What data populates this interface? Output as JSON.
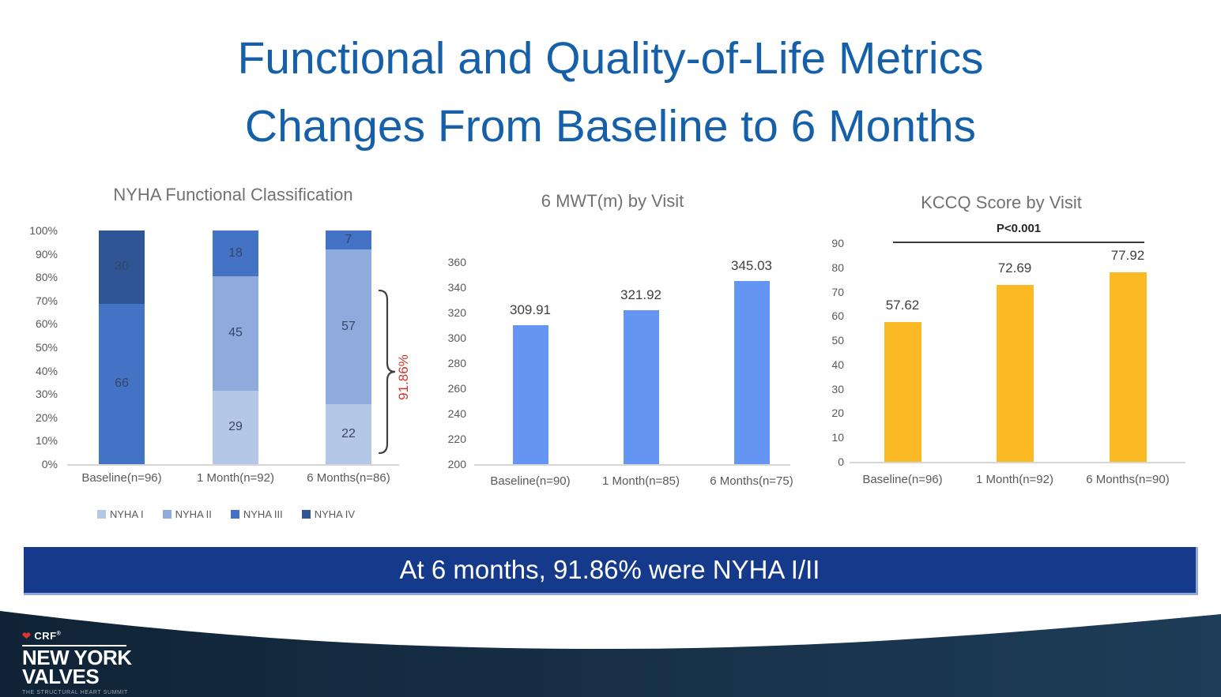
{
  "slide_title": {
    "line1": "Functional and Quality-of-Life Metrics",
    "line2": "Changes From Baseline to 6 Months"
  },
  "colors": {
    "title_blue": "#1660A9",
    "banner_bg": "#153A8C",
    "footer_navy": "#13293F",
    "annotation_red": "#D0342C",
    "mwt_bar_blue": "#6495F2",
    "kccq_bar_amber": "#FBBA24"
  },
  "chart_data": [
    {
      "id": "nyha",
      "type": "bar",
      "subtype": "stacked-100-percent",
      "title": "NYHA Functional Classification",
      "categories": [
        "Baseline(n=96)",
        "1 Month(n=92)",
        "6 Months(n=86)"
      ],
      "series": [
        {
          "name": "NYHA I",
          "color": "#B4C7E7",
          "values": [
            0,
            29,
            22
          ]
        },
        {
          "name": "NYHA II",
          "color": "#8FAADC",
          "values": [
            0,
            45,
            57
          ]
        },
        {
          "name": "NYHA III",
          "color": "#4472C4",
          "values": [
            66,
            18,
            7
          ]
        },
        {
          "name": "NYHA IV",
          "color": "#2F5597",
          "values": [
            30,
            0,
            0
          ]
        }
      ],
      "y_ticks": [
        "100%",
        "90%",
        "80%",
        "70%",
        "60%",
        "50%",
        "40%",
        "30%",
        "20%",
        "10%",
        "0%"
      ],
      "legend": [
        "NYHA I",
        "NYHA II",
        "NYHA III",
        "NYHA IV"
      ],
      "legend_position": "bottom",
      "annotation": {
        "text": "91.86%",
        "color": "#D0342C"
      }
    },
    {
      "id": "mwt",
      "type": "bar",
      "title": "6 MWT(m) by Visit",
      "categories": [
        "Baseline(n=90)",
        "1 Month(n=85)",
        "6 Months(n=75)"
      ],
      "values": [
        309.91,
        321.92,
        345.03
      ],
      "data_labels": [
        "309.91",
        "321.92",
        "345.03"
      ],
      "ylim": [
        200,
        360
      ],
      "y_ticks": [
        "360",
        "340",
        "320",
        "300",
        "280",
        "260",
        "240",
        "220",
        "200"
      ],
      "bar_color": "#6495F2",
      "grid": false
    },
    {
      "id": "kccq",
      "type": "bar",
      "title": "KCCQ Score by Visit",
      "categories": [
        "Baseline(n=96)",
        "1 Month(n=92)",
        "6 Months(n=90)"
      ],
      "values": [
        57.62,
        72.69,
        77.92
      ],
      "data_labels": [
        "57.62",
        "72.69",
        "77.92"
      ],
      "ylim": [
        0,
        90
      ],
      "y_ticks": [
        "90",
        "80",
        "70",
        "60",
        "50",
        "40",
        "30",
        "20",
        "10",
        "0"
      ],
      "bar_color": "#FBBA24",
      "grid": false,
      "annotation": {
        "text": "P<0.001"
      }
    }
  ],
  "banner": {
    "text": "At 6 months, 91.86% were NYHA I/II"
  },
  "footer": {
    "org": "CRF",
    "registered": "®",
    "brand_line1": "NEW YORK",
    "brand_line2": "VALVES",
    "tagline": "THE STRUCTURAL HEART SUMMIT"
  }
}
